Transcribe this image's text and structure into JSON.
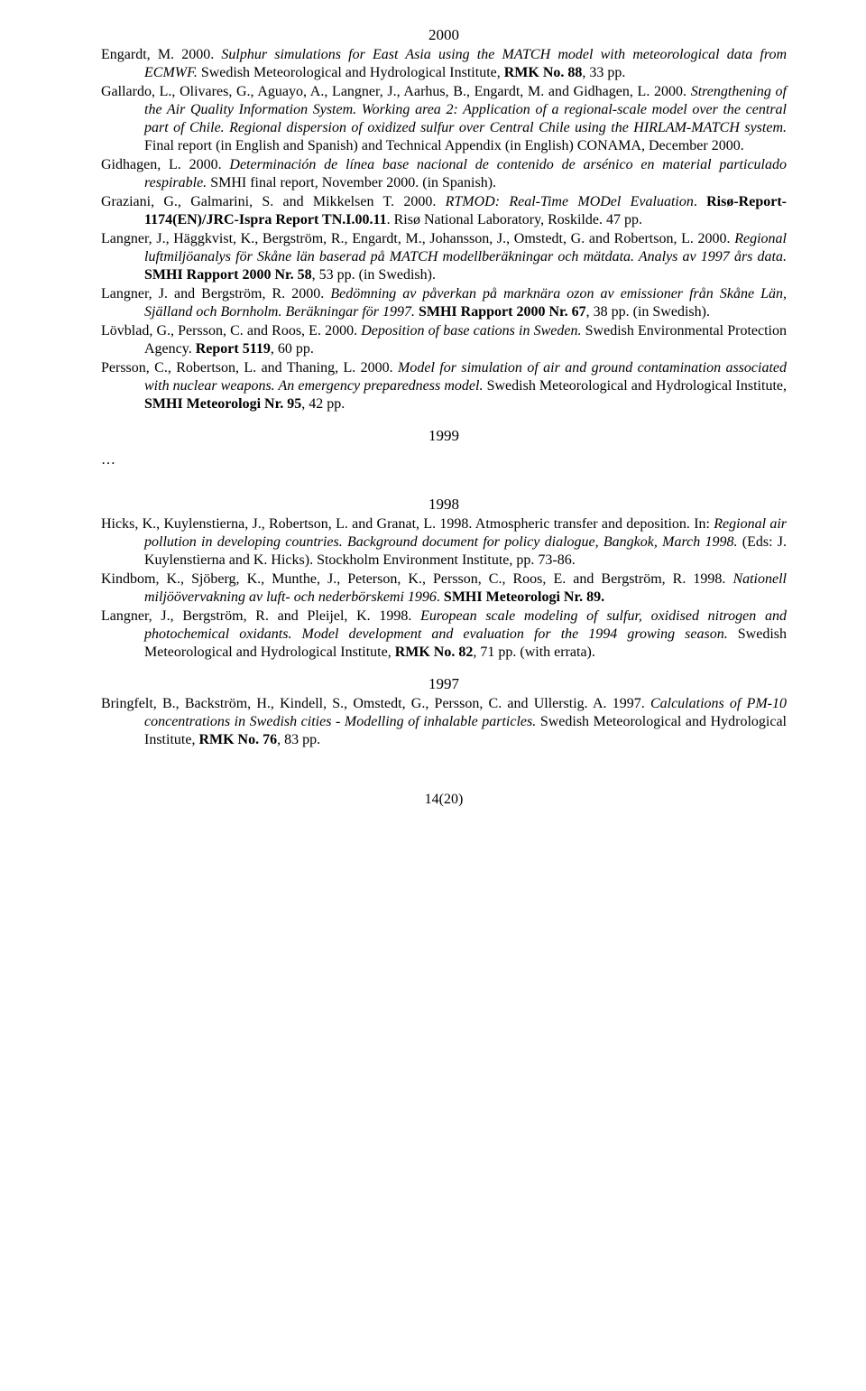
{
  "years": {
    "y2000": "2000",
    "y1999": "1999",
    "y1998": "1998",
    "y1997": "1997"
  },
  "entries": {
    "e1": {
      "authors": "Engardt, M. 2000. ",
      "title": "Sulphur simulations for East Asia using the MATCH model with meteorological data from ECMWF.",
      "post": " Swedish Meteorological and Hydrological Institute, ",
      "bold1": "RMK No. 88",
      "tail": ", 33 pp."
    },
    "e2": {
      "authors": "Gallardo, L., Olivares, G., Aguayo, A., Langner, J., Aarhus, B., Engardt, M. and Gidhagen, L. 2000. ",
      "title": "Strengthening of the Air Quality Information System. Working area 2: Application of a regional-scale model over the central part of Chile. Regional dispersion of oxidized sulfur over Central Chile using the HIRLAM-MATCH system.",
      "tail": " Final report (in English and Spanish) and Technical Appendix (in English) CONAMA, December 2000."
    },
    "e3": {
      "authors": "Gidhagen, L. 2000. ",
      "title": "Determinación de línea base nacional de contenido de arsénico en material particulado respirable.",
      "tail": " SMHI final report, November 2000. (in Spanish)."
    },
    "e4": {
      "authors": "Graziani, G., Galmarini, S. and Mikkelsen T. 2000. ",
      "title": "RTMOD: Real-Time MODel Evaluation",
      "mid1": ". ",
      "bold1": "Risø-Report-1174(EN)/JRC-Ispra Report TN.I.00.11",
      "tail": ". Risø National Laboratory, Roskilde. 47 pp."
    },
    "e5": {
      "authors": "Langner, J., Häggkvist, K., Bergström, R., Engardt, M., Johansson, J., Omstedt, G. and Robertson, L. 2000. ",
      "title": "Regional luftmiljöanalys för Skåne län baserad på MATCH modellberäkningar och mätdata. Analys av 1997 års data.",
      "mid1": " ",
      "bold1": "SMHI Rapport 2000 Nr. 58",
      "tail": ", 53 pp. (in Swedish)."
    },
    "e6": {
      "authors": "Langner, J. and Bergström, R. 2000. ",
      "title": "Bedömning av påverkan på marknära ozon av emissioner från Skåne Län, Själland och Bornholm. Beräkningar för 1997.",
      "mid1": " ",
      "bold1": "SMHI Rapport 2000 Nr. 67",
      "tail": ", 38 pp. (in Swedish)."
    },
    "e7": {
      "authors": "Lövblad, G., Persson, C. and Roos, E. 2000. ",
      "title": "Deposition of base cations in Sweden.",
      "mid1": " Swedish Environmental Protection Agency. ",
      "bold1": "Report 5119",
      "tail": ", 60 pp."
    },
    "e8": {
      "authors": "Persson, C., Robertson, L. and Thaning, L. 2000. ",
      "title": "Model for simulation of air and ground contamination associated with nuclear weapons. An emergency preparedness model.",
      "mid1": " Swedish Meteorological and Hydrological Institute, ",
      "bold1": "SMHI Meteorologi Nr. 95",
      "tail": ", 42 pp."
    },
    "ellipsis": "…",
    "e9": {
      "authors": "Hicks, K., Kuylenstierna, J., Robertson, L. and Granat, L. 1998. Atmospheric transfer and deposition. In: ",
      "title": "Regional air pollution in developing countries. Background document for policy dialogue, Bangkok, March 1998.",
      "tail": " (Eds: J. Kuylenstierna and K. Hicks). Stockholm Environment Institute, pp. 73-86."
    },
    "e10": {
      "authors": "Kindbom, K., Sjöberg, K., Munthe, J., Peterson, K., Persson, C., Roos, E. and Bergström, R. 1998. ",
      "title": "Nationell miljöövervakning av luft- och nederbörskemi 1996",
      "mid1": ". ",
      "bold1": "SMHI Meteorologi Nr. 89.",
      "tail": ""
    },
    "e11": {
      "authors": "Langner, J., Bergström, R. and Pleijel, K. 1998. ",
      "title": "European scale modeling of sulfur, oxidised nitrogen and photochemical oxidants. Model development and evaluation for the 1994 growing season.",
      "mid1": " Swedish Meteorological and Hydrological Institute, ",
      "bold1": "RMK No. 82",
      "tail": ", 71 pp. (with errata)."
    },
    "e12": {
      "authors": "Bringfelt, B., Backström, H., Kindell, S., Omstedt, G., Persson, C. and Ullerstig. A. 1997. ",
      "title": "Calculations of PM-10 concentrations in Swedish cities - Modelling of inhalable particles.",
      "mid1": " Swedish Meteorological and Hydrological Institute, ",
      "bold1": "RMK No. 76",
      "tail": ", 83 pp."
    }
  },
  "pagefoot": "14(20)"
}
